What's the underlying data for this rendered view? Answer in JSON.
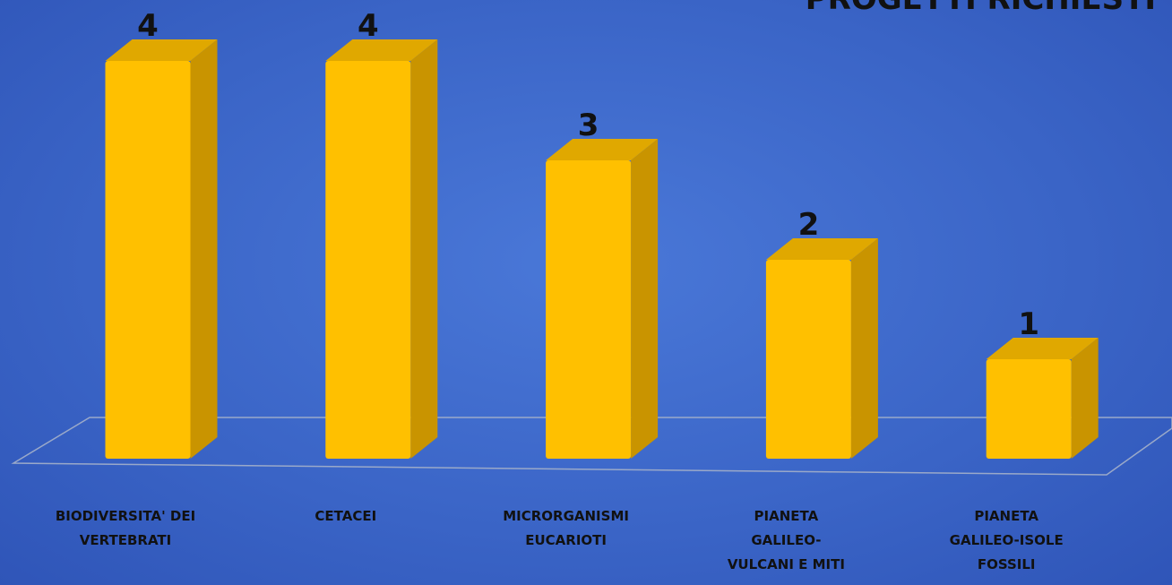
{
  "chart_data": {
    "type": "bar3d",
    "title": "PROGETTI RICHIESTI",
    "categories": [
      "BIODIVERSITA' DEI VERTEBRATI",
      "CETACEI",
      "MICRORGANISMI EUCARIOTI",
      "PIANETA GALILEO-VULCANI E MITI",
      "PIANETA GALILEO-ISOLE FOSSILI"
    ],
    "values": [
      4,
      4,
      3,
      2,
      1
    ],
    "color": "#ffc000",
    "ylim": [
      0,
      4
    ]
  }
}
